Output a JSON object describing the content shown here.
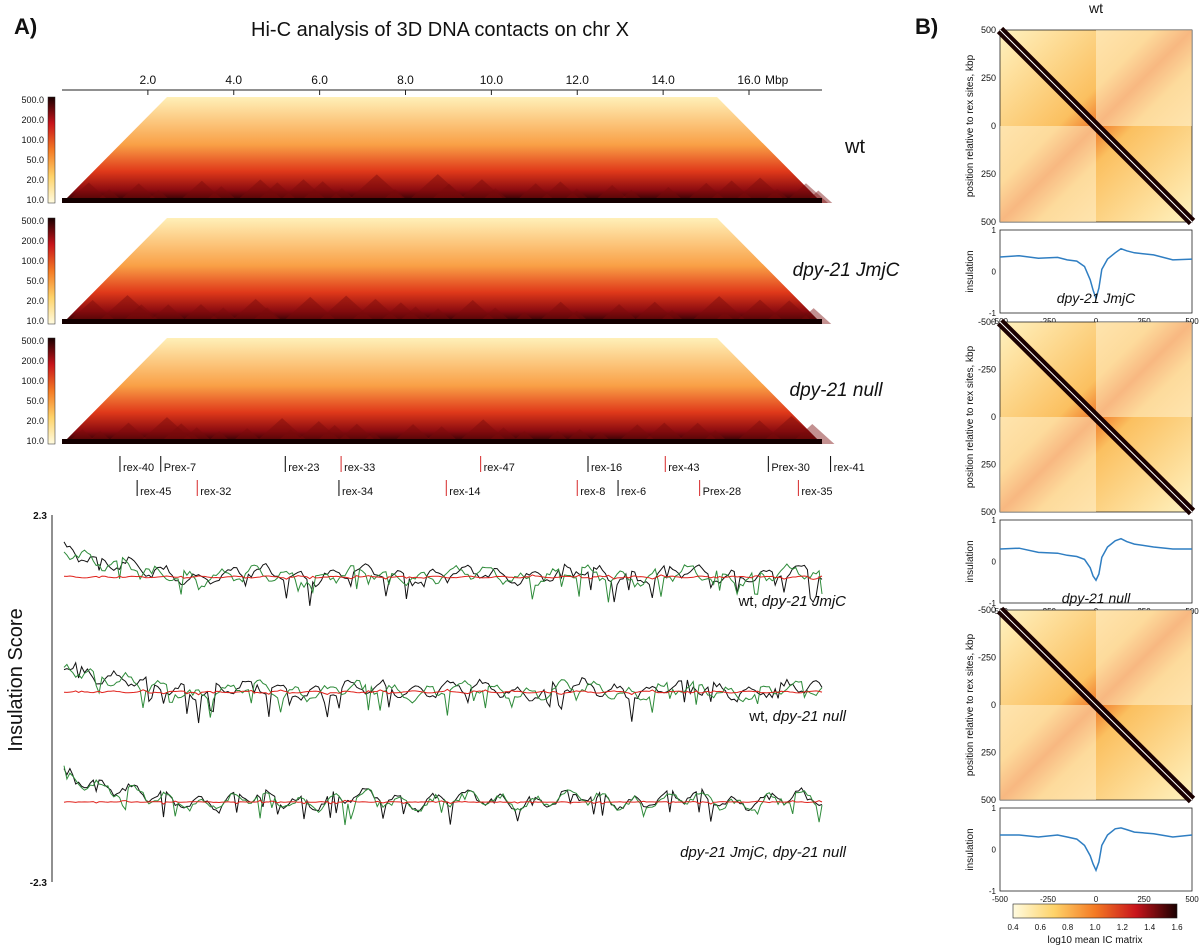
{
  "panel_a": {
    "letter": "A)",
    "title": "Hi-C analysis of 3D DNA contacts on chr X",
    "x_axis_unit": "Mbp",
    "x_ticks": [
      "2.0",
      "4.0",
      "6.0",
      "8.0",
      "10.0",
      "12.0",
      "14.0",
      "16.0"
    ],
    "colorbar_ticks": [
      "500.0",
      "200.0",
      "100.0",
      "50.0",
      "20.0",
      "10.0"
    ],
    "maps": [
      {
        "label": "wt"
      },
      {
        "label": "dpy-21 JmjC"
      },
      {
        "label": "dpy-21 null"
      }
    ],
    "rex_sites_row1": [
      {
        "name": "rex-40",
        "mbp": 1.35,
        "color": "#000000"
      },
      {
        "name": "Prex-7",
        "mbp": 2.3,
        "color": "#000000"
      },
      {
        "name": "rex-23",
        "mbp": 5.2,
        "color": "#000000"
      },
      {
        "name": "rex-33",
        "mbp": 6.5,
        "color": "#d62728"
      },
      {
        "name": "rex-47",
        "mbp": 9.75,
        "color": "#d62728"
      },
      {
        "name": "rex-16",
        "mbp": 12.25,
        "color": "#000000"
      },
      {
        "name": "rex-43",
        "mbp": 14.05,
        "color": "#d62728"
      },
      {
        "name": "Prex-30",
        "mbp": 16.45,
        "color": "#000000"
      },
      {
        "name": "rex-41",
        "mbp": 17.9,
        "color": "#000000"
      }
    ],
    "rex_sites_row2": [
      {
        "name": "rex-45",
        "mbp": 1.75,
        "color": "#000000"
      },
      {
        "name": "rex-32",
        "mbp": 3.15,
        "color": "#d62728"
      },
      {
        "name": "rex-34",
        "mbp": 6.45,
        "color": "#000000"
      },
      {
        "name": "rex-14",
        "mbp": 8.95,
        "color": "#d62728"
      },
      {
        "name": "rex-8",
        "mbp": 12.0,
        "color": "#d62728"
      },
      {
        "name": "rex-6",
        "mbp": 12.95,
        "color": "#000000"
      },
      {
        "name": "Prex-28",
        "mbp": 14.85,
        "color": "#d62728"
      },
      {
        "name": "rex-35",
        "mbp": 17.15,
        "color": "#d62728"
      }
    ],
    "insulation": {
      "ylabel": "Insulation Score",
      "ymax_label": "2.3",
      "ymin_label": "-2.3",
      "comparisons": [
        {
          "label_plain": "wt, ",
          "label_italic": "dpy-21 JmjC"
        },
        {
          "label_plain": "wt, ",
          "label_italic": "dpy-21 null"
        },
        {
          "label_plain": "",
          "label_italic": "dpy-21 JmjC, dpy-21 null"
        }
      ]
    }
  },
  "panel_b": {
    "letter": "B)",
    "maps": [
      {
        "title": "wt",
        "italic": false,
        "y_ticks": [
          "500",
          "250",
          "0",
          "250",
          "500"
        ]
      },
      {
        "title": "dpy-21 JmjC",
        "italic": true,
        "y_ticks": [
          "-500",
          "-250",
          "0",
          "250",
          "500"
        ]
      },
      {
        "title": "dpy-21 null",
        "italic": true,
        "y_ticks": [
          "-500",
          "-250",
          "0",
          "250",
          "500"
        ]
      }
    ],
    "map_ylabel": "position relative to rex sites, kbp",
    "insulation_ylabel": "insulation",
    "insulation_yticks": [
      "1",
      "0",
      "-1"
    ],
    "insulation_xticks": [
      "-500",
      "-250",
      "0",
      "250",
      "500"
    ],
    "xlabel": "position relative to rex sites, kbp",
    "colorbar_ticks": [
      "0.4",
      "0.6",
      "0.8",
      "1.0",
      "1.2",
      "1.4",
      "1.6"
    ],
    "colorbar_label": "log10 mean IC matrix"
  },
  "chart_data": [
    {
      "type": "heatmap",
      "title": "Hi-C analysis of 3D DNA contacts on chr X",
      "xlabel": "Mbp",
      "xlim": [
        0,
        17.7
      ],
      "colorbar_range": [
        10,
        500
      ],
      "series": [
        {
          "name": "wt"
        },
        {
          "name": "dpy-21 JmjC"
        },
        {
          "name": "dpy-21 null"
        }
      ]
    },
    {
      "type": "line",
      "ylabel": "Insulation Score",
      "ylim": [
        -2.3,
        2.3
      ],
      "xlim": [
        0,
        17.7
      ],
      "line_colors": {
        "wt": "#111111",
        "dpy-21 JmjC": "#2e8b3a",
        "dpy-21 null": "#2e8b3a",
        "difference": "#e0201a"
      }
    },
    {
      "type": "heatmap",
      "xlabel": "position relative to rex sites, kbp",
      "ylabel": "position relative to rex sites, kbp",
      "xlim": [
        -500,
        500
      ],
      "ylim": [
        -500,
        500
      ],
      "colorbar_range": [
        0.4,
        1.6
      ],
      "series": [
        {
          "name": "wt"
        },
        {
          "name": "dpy-21 JmjC"
        },
        {
          "name": "dpy-21 null"
        }
      ]
    },
    {
      "type": "line",
      "ylabel": "insulation",
      "xlabel": "position relative to rex sites, kbp",
      "x": [
        -500,
        -400,
        -300,
        -200,
        -150,
        -100,
        -60,
        -30,
        -15,
        0,
        15,
        30,
        60,
        100,
        130,
        160,
        200,
        300,
        400,
        500
      ],
      "ylim": [
        -1,
        1
      ],
      "series": [
        {
          "name": "wt",
          "values": [
            0.35,
            0.38,
            0.32,
            0.34,
            0.28,
            0.25,
            0.12,
            -0.2,
            -0.45,
            -0.65,
            -0.4,
            0.05,
            0.3,
            0.45,
            0.55,
            0.5,
            0.45,
            0.4,
            0.28,
            0.3
          ]
        },
        {
          "name": "dpy-21 JmjC",
          "values": [
            0.3,
            0.32,
            0.22,
            0.2,
            0.15,
            0.12,
            0.05,
            -0.15,
            -0.35,
            -0.45,
            -0.3,
            0.1,
            0.35,
            0.5,
            0.55,
            0.48,
            0.42,
            0.35,
            0.3,
            0.3
          ]
        },
        {
          "name": "dpy-21 null",
          "values": [
            0.35,
            0.35,
            0.3,
            0.35,
            0.3,
            0.25,
            0.1,
            -0.15,
            -0.35,
            -0.5,
            -0.3,
            0.1,
            0.35,
            0.5,
            0.52,
            0.48,
            0.42,
            0.38,
            0.3,
            0.35
          ]
        }
      ]
    }
  ]
}
